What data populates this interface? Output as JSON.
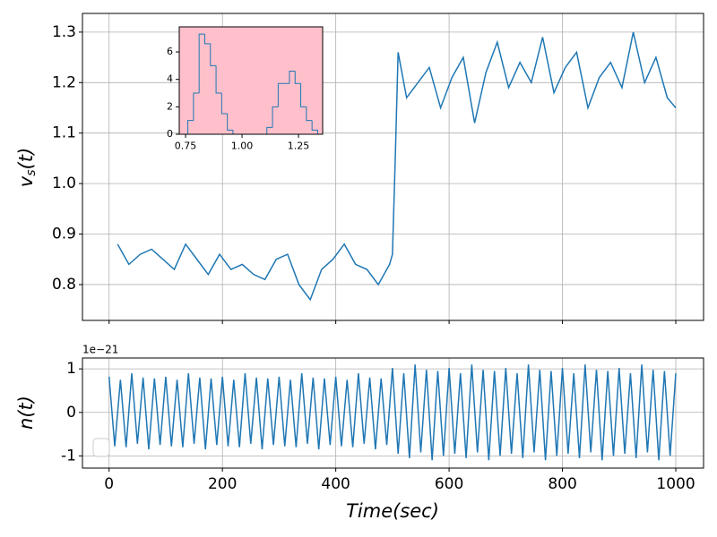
{
  "chart_data": [
    {
      "type": "line",
      "ylabel": [
        "v",
        "s",
        "(t)"
      ],
      "x": [
        15,
        35,
        55,
        75,
        95,
        115,
        135,
        155,
        175,
        195,
        215,
        235,
        255,
        275,
        295,
        315,
        335,
        355,
        375,
        395,
        415,
        435,
        455,
        475,
        495,
        500,
        505,
        510,
        525,
        545,
        565,
        585,
        605,
        625,
        645,
        665,
        685,
        705,
        725,
        745,
        765,
        785,
        805,
        825,
        845,
        865,
        885,
        905,
        925,
        945,
        965,
        985,
        1000
      ],
      "series": [
        {
          "color": "#1f77b4",
          "values": [
            0.88,
            0.84,
            0.86,
            0.87,
            0.85,
            0.83,
            0.88,
            0.85,
            0.82,
            0.86,
            0.83,
            0.84,
            0.82,
            0.81,
            0.85,
            0.86,
            0.8,
            0.77,
            0.83,
            0.85,
            0.88,
            0.84,
            0.83,
            0.8,
            0.84,
            0.86,
            1.05,
            1.26,
            1.17,
            1.2,
            1.23,
            1.15,
            1.21,
            1.25,
            1.12,
            1.22,
            1.28,
            1.19,
            1.24,
            1.2,
            1.29,
            1.18,
            1.23,
            1.26,
            1.15,
            1.21,
            1.24,
            1.19,
            1.3,
            1.2,
            1.25,
            1.17,
            1.15
          ]
        }
      ],
      "xlim": [
        -47,
        1049
      ],
      "ylim": [
        0.729,
        1.337
      ],
      "xticks": [
        0,
        200,
        400,
        600,
        800,
        1000
      ],
      "xticklabels": false,
      "yticks": [
        0.8,
        0.9,
        {
          "value": 1,
          "label": "1.0"
        },
        1.1,
        1.2,
        1.3
      ],
      "grid": true
    },
    {
      "type": "histogram",
      "facecolor": "#ffc0cb",
      "color": "#1f77b4",
      "bins": [
        0.76,
        0.785,
        0.81,
        0.835,
        0.86,
        0.885,
        0.91,
        0.935,
        0.96,
        0.985,
        1.01,
        1.035,
        1.06,
        1.085,
        1.11,
        1.135,
        1.16,
        1.185,
        1.21,
        1.235,
        1.26,
        1.285,
        1.31,
        1.335
      ],
      "values": [
        1,
        3,
        7.3,
        6.6,
        5,
        3,
        1.5,
        0.3,
        0,
        0,
        0,
        0,
        0,
        0,
        0.5,
        2,
        3.7,
        3.7,
        4.6,
        3.7,
        2,
        1,
        0.3
      ],
      "xlim": [
        0.722,
        1.357
      ],
      "ylim": [
        0,
        7.83
      ],
      "xticks": [
        0.75,
        {
          "value": 1,
          "label": "1.00"
        },
        1.25
      ],
      "yticks": [
        0,
        2,
        4,
        6
      ],
      "grid": false
    },
    {
      "type": "line",
      "ylabel": "n(t)",
      "xlabel": "Time(sec)",
      "offset_text": "1e−21",
      "x": [
        0,
        10,
        20,
        30,
        40,
        50,
        60,
        70,
        80,
        90,
        100,
        110,
        120,
        130,
        140,
        150,
        160,
        170,
        180,
        190,
        200,
        210,
        220,
        230,
        240,
        250,
        260,
        270,
        280,
        290,
        300,
        310,
        320,
        330,
        340,
        350,
        360,
        370,
        380,
        390,
        400,
        410,
        420,
        430,
        440,
        450,
        460,
        470,
        480,
        490,
        500,
        510,
        520,
        530,
        540,
        550,
        560,
        570,
        580,
        590,
        600,
        610,
        620,
        630,
        640,
        650,
        660,
        670,
        680,
        690,
        700,
        710,
        720,
        730,
        740,
        750,
        760,
        770,
        780,
        790,
        800,
        810,
        820,
        830,
        840,
        850,
        860,
        870,
        880,
        890,
        900,
        910,
        920,
        930,
        940,
        950,
        960,
        970,
        980,
        990,
        1000
      ],
      "series": [
        {
          "color": "#1f77b4",
          "values": [
            0.82,
            -0.78,
            0.75,
            -0.8,
            0.9,
            -0.72,
            0.8,
            -0.85,
            0.78,
            -0.75,
            0.82,
            -0.78,
            0.75,
            -0.8,
            0.9,
            -0.72,
            0.8,
            -0.85,
            0.78,
            -0.75,
            0.82,
            -0.78,
            0.75,
            -0.8,
            0.9,
            -0.72,
            0.8,
            -0.85,
            0.78,
            -0.75,
            0.82,
            -0.78,
            0.75,
            -0.8,
            0.9,
            -0.72,
            0.8,
            -0.85,
            0.78,
            -0.75,
            0.82,
            -0.78,
            0.75,
            -0.8,
            0.9,
            -0.72,
            0.8,
            -0.85,
            0.78,
            -0.75,
            1.02,
            -0.95,
            0.9,
            -1.05,
            1.1,
            -0.92,
            0.98,
            -1.1,
            0.95,
            -1.0,
            1.02,
            -0.95,
            0.9,
            -1.05,
            1.1,
            -0.92,
            0.98,
            -1.1,
            0.95,
            -1.0,
            1.02,
            -0.95,
            0.9,
            -1.05,
            1.1,
            -0.92,
            0.98,
            -1.1,
            0.95,
            -1.0,
            1.02,
            -0.95,
            0.9,
            -1.05,
            1.1,
            -0.92,
            0.98,
            -1.1,
            0.95,
            -1.0,
            1.02,
            -0.95,
            0.9,
            -1.05,
            1.1,
            -0.92,
            0.98,
            -1.1,
            0.95,
            -1.0,
            0.9
          ]
        }
      ],
      "xlim": [
        -47,
        1049
      ],
      "ylim": [
        -1.28,
        1.25
      ],
      "xticks": [
        0,
        200,
        400,
        600,
        800,
        1000
      ],
      "yticks": [
        -1,
        0,
        1
      ],
      "grid": true
    }
  ]
}
